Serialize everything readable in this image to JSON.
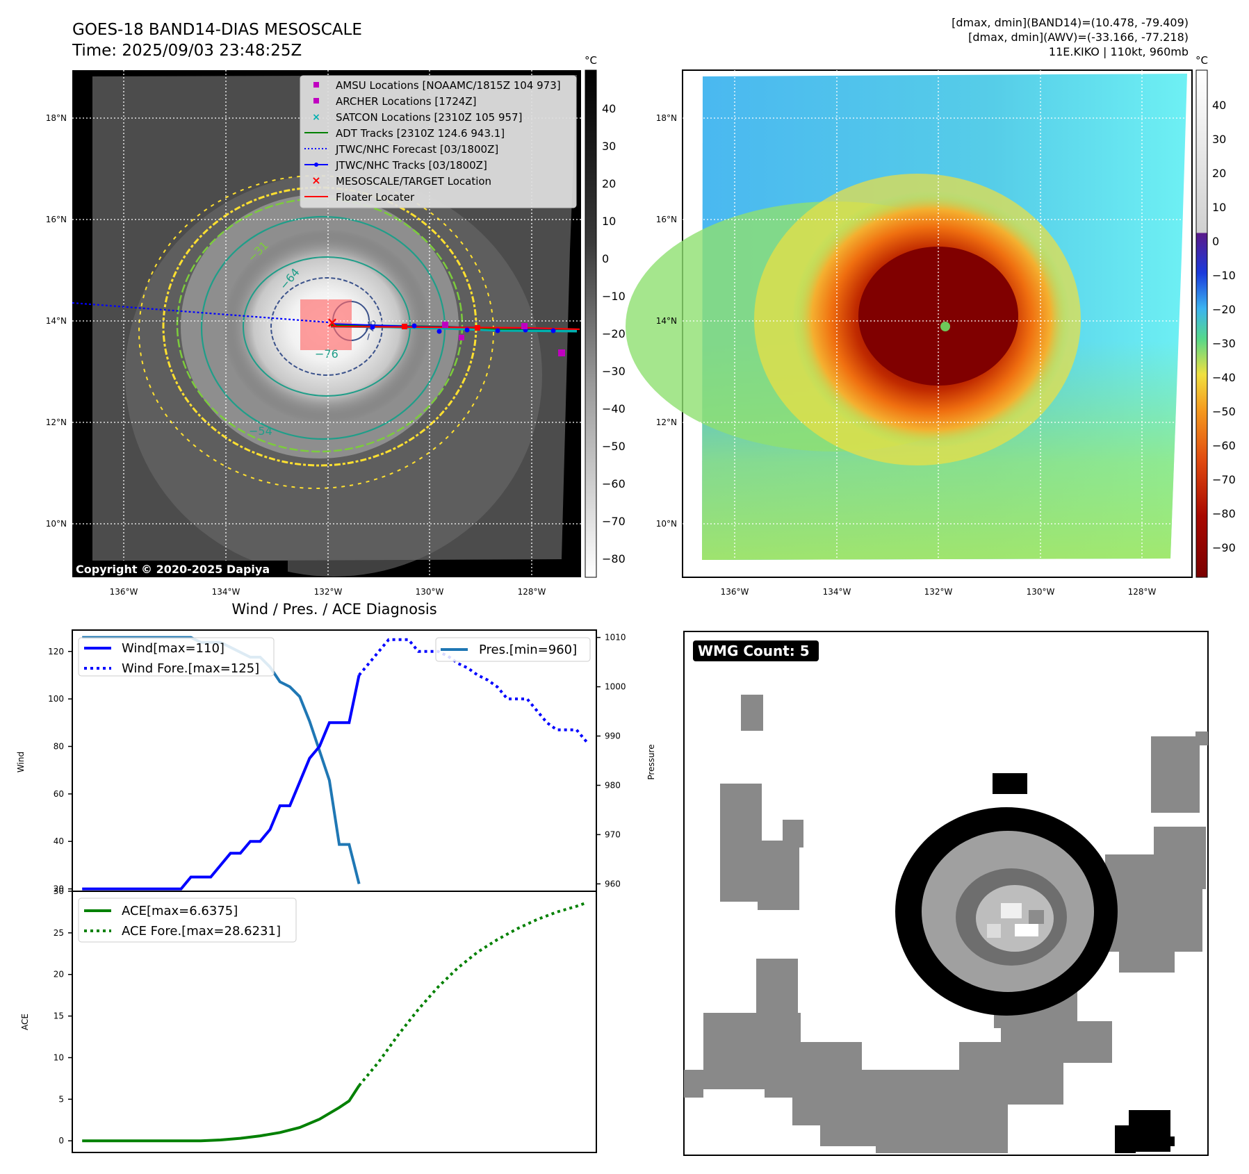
{
  "header": {
    "title_line1": "GOES-18 BAND14-DIAS MESOSCALE",
    "title_line2": "Time: 2025/09/03 23:48:25Z",
    "right_line1": "[dmax, dmin](BAND14)=(10.478, -79.409)",
    "right_line2": "[dmax, dmin](AWV)=(-33.166, -77.218)",
    "right_line3": "11E.KIKO | 110kt, 960mb"
  },
  "colors": {
    "wind": "#0000ff",
    "pressure": "#1f77b4",
    "ace": "#008000",
    "amsu": "#c000c0",
    "archer": "#c000c0",
    "satcon": "#00b0b0",
    "adt": "#008000",
    "floater": "#ff0000",
    "contour_outer": "#ffe030",
    "contour_mid": "#7ccc3c",
    "contour_inner": "#1f9e89",
    "contour_core": "#3b528b"
  },
  "ir_map": {
    "lon_ticks": [
      "136°W",
      "134°W",
      "132°W",
      "130°W",
      "128°W"
    ],
    "lat_ticks": [
      "18°N",
      "16°N",
      "14°N",
      "12°N",
      "10°N"
    ],
    "colorbar_unit": "°C",
    "colorbar_ticks": [
      "40",
      "30",
      "20",
      "10",
      "0",
      "−10",
      "−20",
      "−30",
      "−40",
      "−50",
      "−60",
      "−70",
      "−80"
    ],
    "contour_labels": [
      "−31",
      "−64",
      "−76",
      "−54",
      "−76"
    ],
    "copyright": "Copyright © 2020-2025 Dapiya",
    "legend": [
      "AMSU Locations [NOAAMC/1815Z 104 973]",
      "ARCHER Locations [1724Z]",
      "SATCON Locations [2310Z 105 957]",
      "ADT Tracks [2310Z 124.6 943.1]",
      "JTWC/NHC Forecast [03/1800Z]",
      "JTWC/NHC Tracks [03/1800Z]",
      "MESOSCALE/TARGET Location",
      "Floater Locater"
    ]
  },
  "color_map": {
    "lon_ticks": [
      "136°W",
      "134°W",
      "132°W",
      "130°W",
      "128°W"
    ],
    "lat_ticks": [
      "18°N",
      "16°N",
      "14°N",
      "12°N",
      "10°N"
    ],
    "colorbar_unit": "°C",
    "colorbar_ticks": [
      "40",
      "30",
      "20",
      "10",
      "0",
      "−10",
      "−20",
      "−30",
      "−40",
      "−50",
      "−60",
      "−70",
      "−80",
      "−90"
    ]
  },
  "wmg": {
    "label": "WMG Count: 5"
  },
  "chart_data": [
    {
      "type": "line",
      "title": "Wind / Pres. / ACE Diagnosis",
      "xlabel": "",
      "ylabel": "Wind",
      "ylabel_right": "Pressure",
      "ylim": [
        19,
        129
      ],
      "ylim_right": [
        958.5,
        1011.5
      ],
      "xlim": [
        -1,
        52
      ],
      "yticks": [
        20,
        40,
        60,
        80,
        100,
        120
      ],
      "yticks_right": [
        960,
        970,
        980,
        990,
        1000,
        1010
      ],
      "series": [
        {
          "name": "Wind[max=110]",
          "style": "solid",
          "x": [
            0,
            1,
            2,
            3,
            4,
            5,
            6,
            7,
            8,
            9,
            10,
            11,
            12,
            13,
            14,
            15,
            16,
            17,
            18,
            19,
            20,
            21,
            22,
            23,
            24,
            25,
            26,
            27,
            28
          ],
          "values": [
            20,
            20,
            20,
            20,
            20,
            20,
            20,
            20,
            20,
            20,
            20,
            25,
            25,
            25,
            30,
            35,
            35,
            40,
            40,
            45,
            55,
            55,
            65,
            75,
            80,
            90,
            90,
            90,
            110
          ]
        },
        {
          "name": "Wind Fore.[max=125]",
          "style": "dotted",
          "x": [
            28,
            29,
            30,
            31,
            32,
            33,
            34,
            35,
            36,
            37,
            38,
            39,
            40,
            41,
            42,
            43,
            44,
            45,
            46,
            47,
            48,
            49,
            50,
            51
          ],
          "values": [
            110,
            115,
            120,
            125,
            125,
            125,
            120,
            120,
            120,
            118,
            115,
            113,
            110,
            108,
            105,
            100,
            100,
            100,
            95,
            90,
            87,
            87,
            87,
            82
          ]
        },
        {
          "name": "Pres.[min=960]",
          "axis": "right",
          "style": "solid",
          "x": [
            0,
            1,
            2,
            3,
            4,
            5,
            6,
            7,
            8,
            9,
            10,
            11,
            12,
            13,
            14,
            15,
            16,
            17,
            18,
            19,
            20,
            21,
            22,
            23,
            24,
            25,
            26,
            27,
            28
          ],
          "values": [
            1010,
            1010,
            1010,
            1010,
            1010,
            1010,
            1010,
            1010,
            1010,
            1010,
            1010,
            1010,
            1009,
            1009,
            1009,
            1008,
            1007,
            1006,
            1006,
            1004,
            1001,
            1000,
            998,
            993,
            987,
            981,
            968,
            968,
            960
          ]
        }
      ]
    },
    {
      "type": "line",
      "title": "",
      "xlabel": "",
      "ylabel": "ACE",
      "ylim": [
        -1.4,
        30
      ],
      "xlim": [
        -1,
        52
      ],
      "yticks": [
        0,
        5,
        10,
        15,
        20,
        25,
        30
      ],
      "series": [
        {
          "name": "ACE[max=6.6375]",
          "style": "solid",
          "x": [
            0,
            2,
            4,
            6,
            8,
            10,
            12,
            14,
            16,
            18,
            20,
            22,
            24,
            26,
            27,
            28
          ],
          "values": [
            0,
            0,
            0,
            0,
            0,
            0,
            0,
            0.1,
            0.3,
            0.6,
            1.0,
            1.6,
            2.6,
            4.0,
            4.8,
            6.6375
          ]
        },
        {
          "name": "ACE Fore.[max=28.6231]",
          "style": "dotted",
          "x": [
            28,
            30,
            32,
            34,
            36,
            38,
            40,
            42,
            44,
            46,
            48,
            50,
            51
          ],
          "values": [
            6.6375,
            9.5,
            12.8,
            15.8,
            18.5,
            20.8,
            22.7,
            24.2,
            25.5,
            26.6,
            27.5,
            28.2,
            28.6231
          ]
        }
      ]
    }
  ]
}
